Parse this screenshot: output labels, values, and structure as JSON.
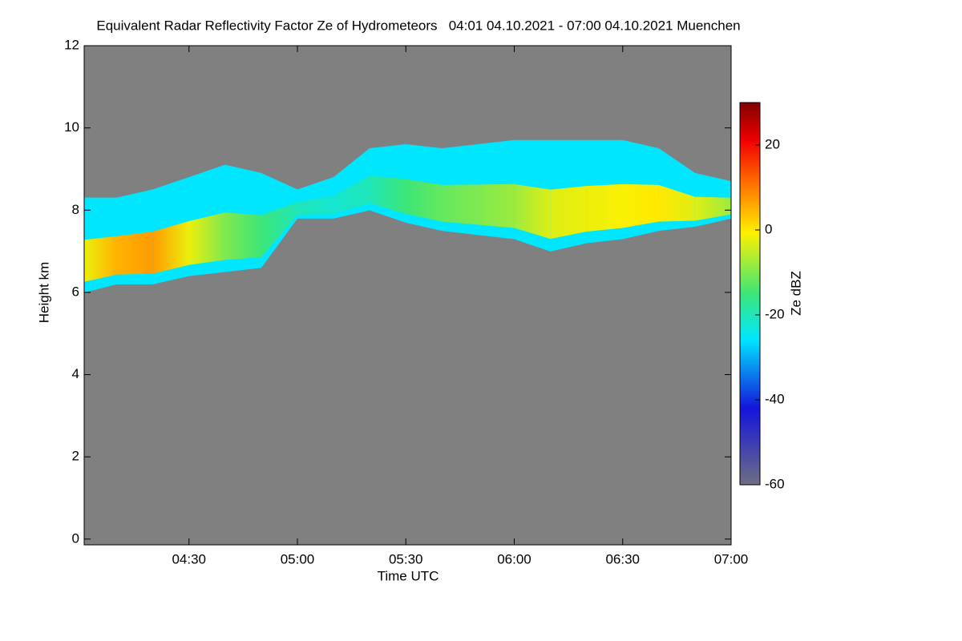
{
  "chart_data": {
    "type": "heatmap",
    "title": "Equivalent Radar Reflectivity Factor Ze of Hydrometeors   04:01 04.10.2021 - 07:00 04.10.2021 Muenchen",
    "xlabel": "Time UTC",
    "ylabel": "Height km",
    "colorbar_label": "Ze dBZ",
    "x": [
      241,
      250,
      260,
      270,
      280,
      290,
      300,
      310,
      320,
      330,
      340,
      350,
      360,
      370,
      380,
      390,
      400,
      410,
      420
    ],
    "top": [
      8.3,
      8.3,
      8.5,
      8.8,
      9.1,
      8.9,
      8.5,
      8.8,
      9.5,
      9.6,
      9.5,
      9.6,
      9.7,
      9.7,
      9.7,
      9.7,
      9.5,
      8.9,
      8.7
    ],
    "base": [
      6.0,
      6.2,
      6.2,
      6.4,
      6.5,
      6.6,
      7.8,
      7.8,
      8.0,
      7.7,
      7.5,
      7.4,
      7.3,
      7.0,
      7.2,
      7.3,
      7.5,
      7.6,
      7.8
    ],
    "values": [
      -2,
      5,
      7,
      -2,
      -10,
      -15,
      -20,
      -22,
      -20,
      -15,
      -12,
      -10,
      -8,
      -3,
      -2,
      -1,
      0,
      -3,
      -8
    ],
    "xlim": [
      241,
      420
    ],
    "xticks": [
      {
        "value": 270,
        "label": "04:30"
      },
      {
        "value": 300,
        "label": "05:00"
      },
      {
        "value": 330,
        "label": "05:30"
      },
      {
        "value": 360,
        "label": "06:00"
      },
      {
        "value": 390,
        "label": "06:30"
      },
      {
        "value": 420,
        "label": "07:00"
      }
    ],
    "ylim": [
      -0.14,
      12
    ],
    "yticks": [
      0,
      2,
      4,
      6,
      8,
      10,
      12
    ],
    "zlim": [
      -60,
      30
    ],
    "zticks": [
      -60,
      -40,
      -20,
      0,
      20
    ],
    "background": "#808080"
  }
}
